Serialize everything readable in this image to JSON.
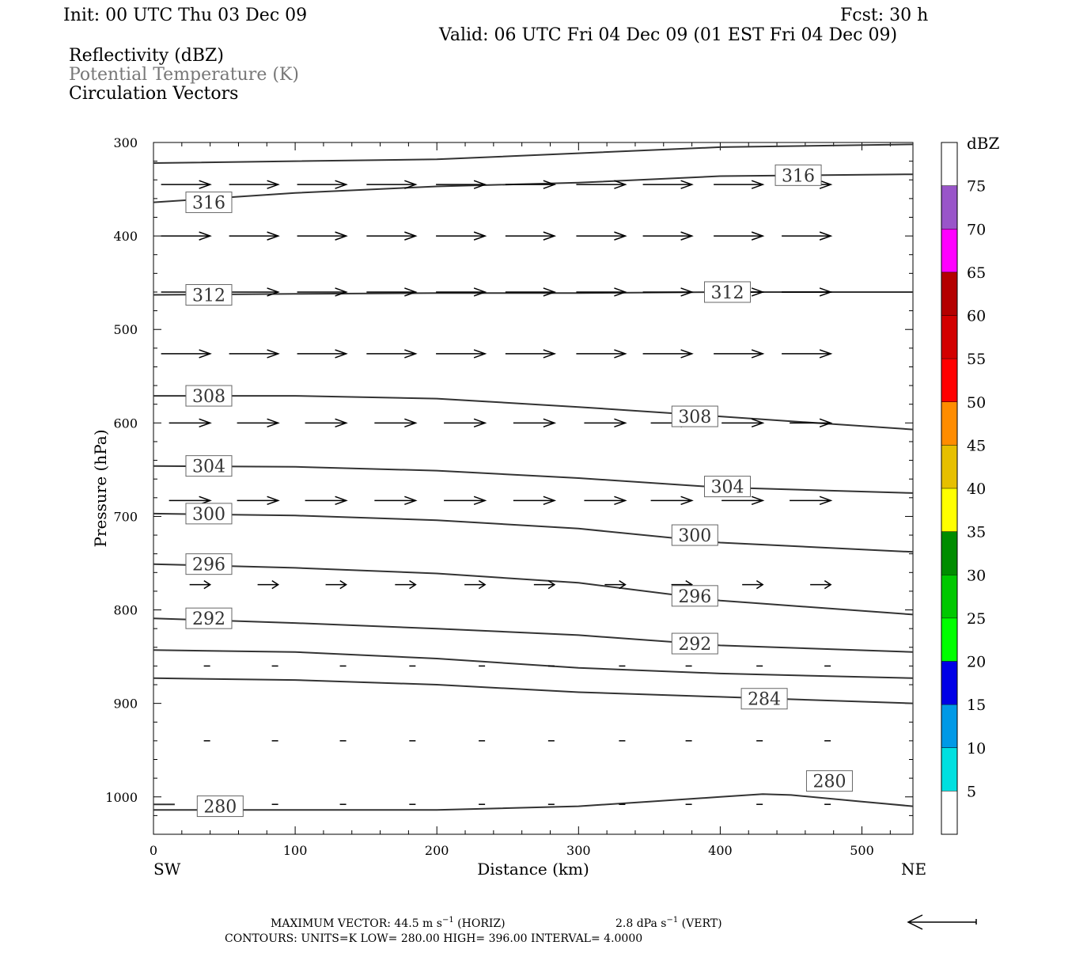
{
  "header": {
    "init": "Init: 00 UTC Thu 03 Dec 09",
    "fcst": "Fcst:   30 h",
    "valid": "Valid: 06 UTC Fri 04 Dec 09 (01 EST Fri 04 Dec 09)",
    "field1": "Reflectivity (dBZ)",
    "field2": "Potential Temperature (K)",
    "field3": "Circulation Vectors"
  },
  "axes": {
    "ylabel": "Pressure (hPa)",
    "xlabel": "Distance (km)",
    "left_end": "SW",
    "right_end": "NE",
    "colorbar_title": "dBZ"
  },
  "footer": {
    "max_vector": "MAXIMUM VECTOR:  44.5 m s",
    "horiz": "(HORIZ)",
    "vert_val": "2.8 dPa s",
    "vert": "(VERT)",
    "contours": "CONTOURS:  UNITS=K  LOW=   280.00         HIGH=   396.00          INTERVAL=      4.0000"
  },
  "colors": {
    "contour": "#333333",
    "vector": "#000000"
  },
  "colorbar": {
    "levels": [
      "5",
      "10",
      "15",
      "20",
      "25",
      "30",
      "35",
      "40",
      "45",
      "50",
      "55",
      "60",
      "65",
      "70",
      "75"
    ],
    "colors": [
      "#ffffff",
      "#00e0e0",
      "#0099e6",
      "#0000e6",
      "#00ff00",
      "#00c800",
      "#008c00",
      "#ffff00",
      "#e6bf00",
      "#ff8c00",
      "#ff0000",
      "#d20000",
      "#b40000",
      "#ff00ff",
      "#9955c9"
    ]
  },
  "chart_data": {
    "type": "cross-section",
    "xlim": [
      0,
      536
    ],
    "ylim": [
      1040,
      300
    ],
    "xticks": [
      "0",
      "100",
      "200",
      "300",
      "400",
      "500"
    ],
    "yticks": [
      "300",
      "400",
      "500",
      "600",
      "700",
      "800",
      "900",
      "1000"
    ],
    "contours": [
      {
        "label": "",
        "points": [
          [
            0,
            322
          ],
          [
            200,
            318
          ],
          [
            400,
            305
          ],
          [
            536,
            302
          ]
        ],
        "labels": []
      },
      {
        "label": "316",
        "points": [
          [
            0,
            364
          ],
          [
            100,
            354
          ],
          [
            200,
            347
          ],
          [
            300,
            343
          ],
          [
            400,
            336
          ],
          [
            536,
            334
          ]
        ],
        "labels": [
          [
            24,
            364
          ],
          [
            440,
            335
          ]
        ]
      },
      {
        "label": "312",
        "points": [
          [
            0,
            463
          ],
          [
            100,
            462
          ],
          [
            200,
            461
          ],
          [
            300,
            461
          ],
          [
            400,
            460
          ],
          [
            536,
            460
          ]
        ],
        "labels": [
          [
            24,
            463
          ],
          [
            390,
            460
          ]
        ]
      },
      {
        "label": "308",
        "points": [
          [
            0,
            571
          ],
          [
            100,
            571
          ],
          [
            200,
            574
          ],
          [
            300,
            583
          ],
          [
            400,
            593
          ],
          [
            536,
            607
          ]
        ],
        "labels": [
          [
            24,
            571
          ],
          [
            367,
            593
          ]
        ]
      },
      {
        "label": "304",
        "points": [
          [
            0,
            646
          ],
          [
            100,
            647
          ],
          [
            200,
            651
          ],
          [
            300,
            659
          ],
          [
            400,
            669
          ],
          [
            536,
            675
          ]
        ],
        "labels": [
          [
            24,
            646
          ],
          [
            390,
            668
          ]
        ]
      },
      {
        "label": "300",
        "points": [
          [
            0,
            697
          ],
          [
            100,
            699
          ],
          [
            200,
            704
          ],
          [
            300,
            713
          ],
          [
            400,
            728
          ],
          [
            536,
            738
          ]
        ],
        "labels": [
          [
            24,
            697
          ],
          [
            367,
            720
          ]
        ]
      },
      {
        "label": "296",
        "points": [
          [
            0,
            751
          ],
          [
            100,
            755
          ],
          [
            200,
            761
          ],
          [
            300,
            771
          ],
          [
            400,
            790
          ],
          [
            536,
            805
          ]
        ],
        "labels": [
          [
            24,
            751
          ],
          [
            367,
            785
          ]
        ]
      },
      {
        "label": "292",
        "points": [
          [
            0,
            809
          ],
          [
            100,
            814
          ],
          [
            200,
            820
          ],
          [
            300,
            827
          ],
          [
            400,
            838
          ],
          [
            536,
            845
          ]
        ],
        "labels": [
          [
            24,
            809
          ],
          [
            367,
            836
          ]
        ]
      },
      {
        "label": "",
        "points": [
          [
            0,
            843
          ],
          [
            100,
            845
          ],
          [
            200,
            852
          ],
          [
            300,
            862
          ],
          [
            400,
            868
          ],
          [
            536,
            873
          ]
        ],
        "labels": []
      },
      {
        "label": "284",
        "points": [
          [
            0,
            873
          ],
          [
            100,
            875
          ],
          [
            200,
            880
          ],
          [
            300,
            888
          ],
          [
            400,
            893
          ],
          [
            536,
            900
          ]
        ],
        "labels": [
          [
            416,
            895
          ]
        ]
      },
      {
        "label": "280",
        "points": [
          [
            0,
            1014
          ],
          [
            200,
            1014
          ],
          [
            300,
            1010
          ],
          [
            350,
            1005
          ],
          [
            400,
            1000
          ],
          [
            430,
            997
          ],
          [
            450,
            998
          ],
          [
            500,
            1005
          ],
          [
            536,
            1010
          ]
        ],
        "labels": [
          [
            32,
            1010
          ]
        ]
      },
      {
        "label": "280",
        "points": [
          [
            0,
            1008
          ],
          [
            15,
            1008
          ]
        ],
        "labels": [
          [
            462,
            983
          ]
        ]
      }
    ],
    "vectors": [
      {
        "p": 345,
        "speed": "strong",
        "xs": [
          40,
          88,
          136,
          185,
          234,
          283,
          333,
          380,
          430,
          478
        ]
      },
      {
        "p": 400,
        "speed": "strong",
        "xs": [
          40,
          88,
          136,
          185,
          234,
          283,
          333,
          380,
          430,
          478
        ]
      },
      {
        "p": 460,
        "speed": "strong",
        "xs": [
          40,
          88,
          136,
          185,
          234,
          283,
          333,
          380,
          430,
          478
        ]
      },
      {
        "p": 526,
        "speed": "strong",
        "xs": [
          40,
          88,
          136,
          185,
          234,
          283,
          333,
          380,
          430,
          478
        ]
      },
      {
        "p": 600,
        "speed": "med",
        "xs": [
          40,
          88,
          136,
          185,
          234,
          283,
          333,
          380,
          430,
          478
        ]
      },
      {
        "p": 683,
        "speed": "med",
        "xs": [
          40,
          88,
          136,
          185,
          234,
          283,
          333,
          380,
          430,
          478
        ]
      },
      {
        "p": 773,
        "speed": "weak",
        "xs": [
          40,
          88,
          136,
          185,
          234,
          283,
          333,
          380,
          430,
          478
        ]
      },
      {
        "p": 860,
        "speed": "tiny",
        "xs": [
          40,
          88,
          136,
          185,
          234,
          283,
          333,
          380,
          430,
          478
        ]
      },
      {
        "p": 940,
        "speed": "tiny",
        "xs": [
          40,
          88,
          136,
          185,
          234,
          283,
          333,
          380,
          430,
          478
        ]
      },
      {
        "p": 1008,
        "speed": "tiny",
        "xs": [
          40,
          88,
          136,
          185,
          234,
          283,
          333,
          380,
          430,
          478
        ]
      }
    ]
  }
}
